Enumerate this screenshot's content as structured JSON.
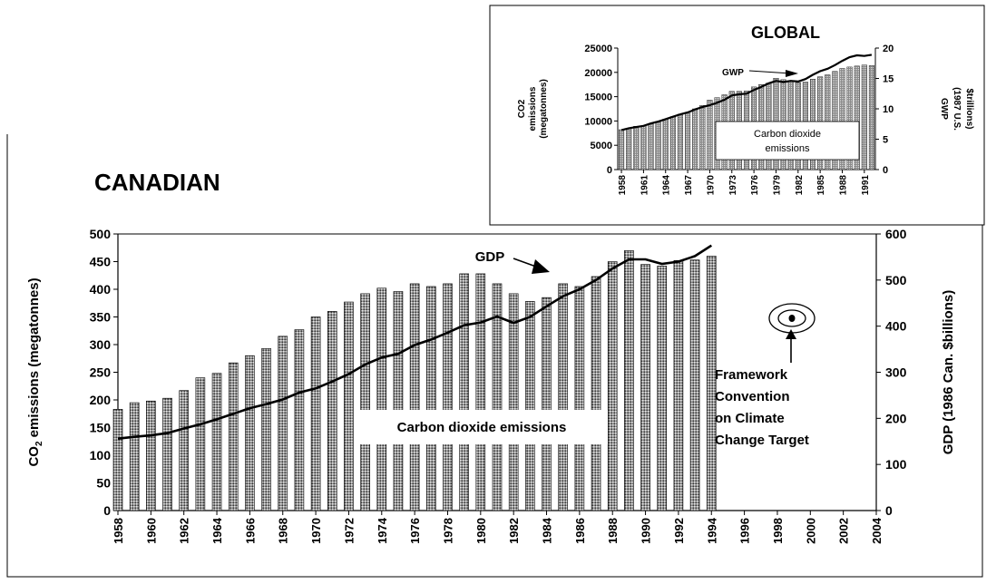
{
  "chart_data": [
    {
      "type": "bar",
      "title": "CANADIAN",
      "ylabel": "CO2 emissions (megatonnes)",
      "ylabel_main": "CO",
      "ylabel_sub": "2",
      "ylabel_rest": " emissions (megatonnes)",
      "y2label": "GDP (1986 Can. $billions)",
      "ylim": [
        0,
        500
      ],
      "y2lim": [
        0,
        600
      ],
      "yticks": [
        0,
        50,
        100,
        150,
        200,
        250,
        300,
        350,
        400,
        450,
        500
      ],
      "y2ticks": [
        0,
        100,
        200,
        300,
        400,
        500,
        600
      ],
      "xticks": [
        "1958",
        "1960",
        "1962",
        "1964",
        "1966",
        "1968",
        "1970",
        "1972",
        "1974",
        "1976",
        "1978",
        "1980",
        "1982",
        "1984",
        "1986",
        "1988",
        "1990",
        "1992",
        "1994",
        "1996",
        "1998",
        "2000",
        "2002",
        "2004"
      ],
      "x_range": [
        1958,
        2004
      ],
      "series": [
        {
          "name": "Carbon dioxide emissions",
          "axis": "left",
          "kind": "bar",
          "x": [
            1958,
            1959,
            1960,
            1961,
            1962,
            1963,
            1964,
            1965,
            1966,
            1967,
            1968,
            1969,
            1970,
            1971,
            1972,
            1973,
            1974,
            1975,
            1976,
            1977,
            1978,
            1979,
            1980,
            1981,
            1982,
            1983,
            1984,
            1985,
            1986,
            1987,
            1988,
            1989,
            1990,
            1991,
            1992,
            1993,
            1994
          ],
          "values": [
            183,
            195,
            198,
            203,
            217,
            240,
            248,
            267,
            280,
            293,
            315,
            327,
            350,
            360,
            377,
            392,
            402,
            396,
            410,
            405,
            410,
            428,
            428,
            410,
            392,
            378,
            385,
            410,
            405,
            423,
            450,
            470,
            445,
            442,
            452,
            453,
            460
          ]
        },
        {
          "name": "GDP",
          "axis": "right",
          "kind": "line",
          "x": [
            1958,
            1959,
            1960,
            1961,
            1962,
            1963,
            1964,
            1965,
            1966,
            1967,
            1968,
            1969,
            1970,
            1971,
            1972,
            1973,
            1974,
            1975,
            1976,
            1977,
            1978,
            1979,
            1980,
            1981,
            1982,
            1983,
            1984,
            1985,
            1986,
            1987,
            1988,
            1989,
            1990,
            1991,
            1992,
            1993,
            1994
          ],
          "values": [
            156,
            160,
            163,
            168,
            178,
            187,
            198,
            210,
            222,
            231,
            241,
            256,
            265,
            280,
            296,
            317,
            332,
            340,
            359,
            371,
            386,
            402,
            408,
            421,
            407,
            420,
            443,
            465,
            480,
            500,
            525,
            545,
            545,
            535,
            540,
            552,
            575
          ]
        }
      ],
      "annotations": {
        "gdp_label": "GDP",
        "bar_label": "Carbon dioxide emissions",
        "target_lines": [
          "Framework",
          "Convention",
          "on Climate",
          "Change Target"
        ]
      },
      "grid": false,
      "legend": "none"
    },
    {
      "type": "bar",
      "title": "GLOBAL",
      "ylabel_lines": [
        "CO2",
        "emissions",
        "(megatonnes)"
      ],
      "y2label_lines": [
        "GWP",
        "(1987 U.S.",
        "$trillions)"
      ],
      "ylim": [
        0,
        25000
      ],
      "y2lim": [
        0,
        20
      ],
      "yticks": [
        0,
        5000,
        10000,
        15000,
        20000,
        25000
      ],
      "y2ticks": [
        0,
        5,
        10,
        15,
        20
      ],
      "xticks": [
        "1958",
        "1961",
        "1964",
        "1967",
        "1970",
        "1973",
        "1976",
        "1979",
        "1982",
        "1985",
        "1988",
        "1991"
      ],
      "x_range": [
        1958,
        1992
      ],
      "series": [
        {
          "name": "Carbon dioxide emissions",
          "axis": "left",
          "kind": "bar",
          "x": [
            1958,
            1959,
            1960,
            1961,
            1962,
            1963,
            1964,
            1965,
            1966,
            1967,
            1968,
            1969,
            1970,
            1971,
            1972,
            1973,
            1974,
            1975,
            1976,
            1977,
            1978,
            1979,
            1980,
            1981,
            1982,
            1983,
            1984,
            1985,
            1986,
            1987,
            1988,
            1989,
            1990,
            1991,
            1992
          ],
          "values": [
            8200,
            8500,
            8900,
            9000,
            9400,
            9900,
            10400,
            10900,
            11400,
            11800,
            12500,
            13200,
            14300,
            14800,
            15400,
            16100,
            16100,
            16200,
            17000,
            17500,
            17800,
            18800,
            18500,
            18100,
            17900,
            18000,
            18600,
            19100,
            19500,
            20200,
            20800,
            21100,
            21300,
            21500,
            21400
          ]
        },
        {
          "name": "GWP",
          "axis": "right",
          "kind": "line",
          "x": [
            1958,
            1959,
            1960,
            1961,
            1962,
            1963,
            1964,
            1965,
            1966,
            1967,
            1968,
            1969,
            1970,
            1971,
            1972,
            1973,
            1974,
            1975,
            1976,
            1977,
            1978,
            1979,
            1980,
            1981,
            1982,
            1983,
            1984,
            1985,
            1986,
            1987,
            1988,
            1989,
            1990,
            1991,
            1992
          ],
          "values": [
            6.5,
            6.8,
            7.0,
            7.2,
            7.6,
            7.9,
            8.3,
            8.7,
            9.1,
            9.4,
            9.9,
            10.3,
            10.6,
            11.0,
            11.5,
            12.2,
            12.4,
            12.5,
            13.1,
            13.6,
            14.2,
            14.6,
            14.4,
            14.6,
            14.5,
            14.9,
            15.6,
            16.2,
            16.6,
            17.2,
            17.9,
            18.5,
            18.8,
            18.7,
            18.9
          ]
        }
      ],
      "annotations": {
        "gwp_label": "GWP",
        "bar_label_lines": [
          "Carbon dioxide",
          "emissions"
        ]
      },
      "grid": false,
      "legend": "none"
    }
  ]
}
